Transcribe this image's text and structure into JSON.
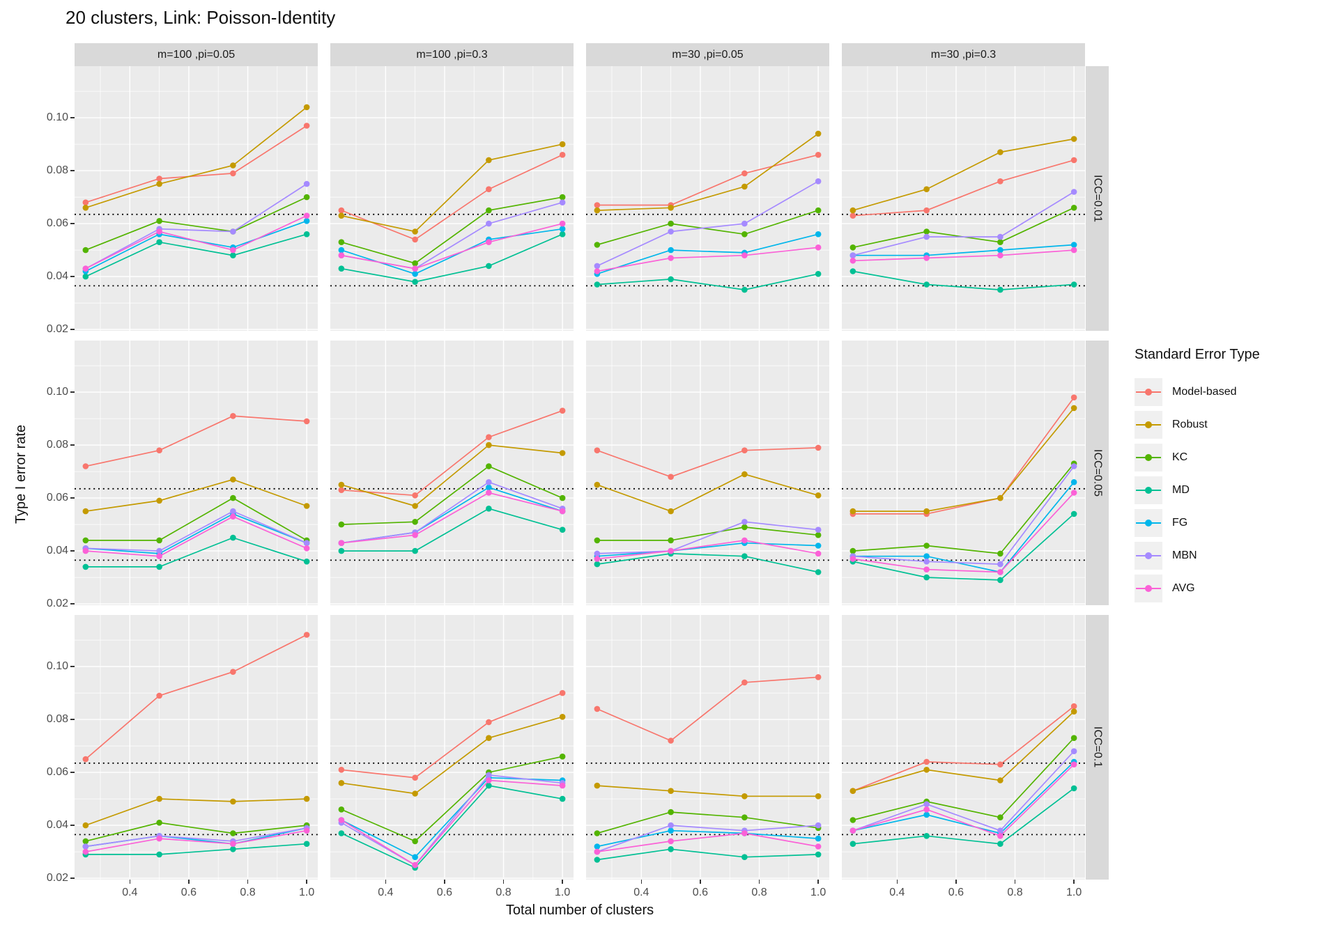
{
  "title": "20 clusters, Link: Poisson-Identity",
  "axes": {
    "x_title": "Total number of clusters",
    "y_title": "Type I error rate",
    "x_ticks": [
      0.4,
      0.6,
      0.8,
      1.0
    ],
    "y_ticks": [
      0.02,
      0.04,
      0.06,
      0.08,
      0.1
    ]
  },
  "facets": {
    "columns": [
      "m=100 ,pi=0.05",
      "m=100 ,pi=0.3",
      "m=30 ,pi=0.05",
      "m=30 ,pi=0.3"
    ],
    "rows": [
      "ICC=0.01",
      "ICC=0.05",
      "ICC=0.1"
    ]
  },
  "legend": {
    "title": "Standard Error Type",
    "entries": [
      {
        "label": "Model-based",
        "color": "#F8766D"
      },
      {
        "label": "Robust",
        "color": "#C49A00"
      },
      {
        "label": "KC",
        "color": "#53B400"
      },
      {
        "label": "MD",
        "color": "#00C094"
      },
      {
        "label": "FG",
        "color": "#00B6EB"
      },
      {
        "label": "MBN",
        "color": "#A58AFF"
      },
      {
        "label": "AVG",
        "color": "#FB61D7"
      }
    ]
  },
  "chart_data": {
    "type": "line",
    "x": [
      0.25,
      0.5,
      0.75,
      1.0
    ],
    "x_domain": [
      0.2125,
      1.0375
    ],
    "y_domain": [
      0.0195,
      0.1195
    ],
    "reference_lines": [
      0.0365,
      0.0635
    ],
    "grid": "on",
    "panel_background": "#EBEBEB",
    "panels": [
      {
        "row": 0,
        "col": 0,
        "facet_col": "m=100 ,pi=0.05",
        "facet_row": "ICC=0.01",
        "series": [
          {
            "name": "Model-based",
            "values": [
              0.068,
              0.077,
              0.079,
              0.097
            ]
          },
          {
            "name": "Robust",
            "values": [
              0.066,
              0.075,
              0.082,
              0.104
            ]
          },
          {
            "name": "KC",
            "values": [
              0.05,
              0.061,
              0.057,
              0.07
            ]
          },
          {
            "name": "MD",
            "values": [
              0.04,
              0.053,
              0.048,
              0.056
            ]
          },
          {
            "name": "FG",
            "values": [
              0.042,
              0.056,
              0.051,
              0.061
            ]
          },
          {
            "name": "MBN",
            "values": [
              0.043,
              0.058,
              0.057,
              0.075
            ]
          },
          {
            "name": "AVG",
            "values": [
              0.043,
              0.057,
              0.05,
              0.063
            ]
          }
        ]
      },
      {
        "row": 0,
        "col": 1,
        "facet_col": "m=100 ,pi=0.3",
        "facet_row": "ICC=0.01",
        "series": [
          {
            "name": "Model-based",
            "values": [
              0.065,
              0.054,
              0.073,
              0.086
            ]
          },
          {
            "name": "Robust",
            "values": [
              0.063,
              0.057,
              0.084,
              0.09
            ]
          },
          {
            "name": "KC",
            "values": [
              0.053,
              0.045,
              0.065,
              0.07
            ]
          },
          {
            "name": "MD",
            "values": [
              0.043,
              0.038,
              0.044,
              0.056
            ]
          },
          {
            "name": "FG",
            "values": [
              0.05,
              0.041,
              0.054,
              0.058
            ]
          },
          {
            "name": "MBN",
            "values": [
              0.048,
              0.043,
              0.06,
              0.068
            ]
          },
          {
            "name": "AVG",
            "values": [
              0.048,
              0.043,
              0.053,
              0.06
            ]
          }
        ]
      },
      {
        "row": 0,
        "col": 2,
        "facet_col": "m=30 ,pi=0.05",
        "facet_row": "ICC=0.01",
        "series": [
          {
            "name": "Model-based",
            "values": [
              0.067,
              0.067,
              0.079,
              0.086
            ]
          },
          {
            "name": "Robust",
            "values": [
              0.065,
              0.066,
              0.074,
              0.094
            ]
          },
          {
            "name": "KC",
            "values": [
              0.052,
              0.06,
              0.056,
              0.065
            ]
          },
          {
            "name": "MD",
            "values": [
              0.037,
              0.039,
              0.035,
              0.041
            ]
          },
          {
            "name": "FG",
            "values": [
              0.041,
              0.05,
              0.049,
              0.056
            ]
          },
          {
            "name": "MBN",
            "values": [
              0.044,
              0.057,
              0.06,
              0.076
            ]
          },
          {
            "name": "AVG",
            "values": [
              0.042,
              0.047,
              0.048,
              0.051
            ]
          }
        ]
      },
      {
        "row": 0,
        "col": 3,
        "facet_col": "m=30 ,pi=0.3",
        "facet_row": "ICC=0.01",
        "series": [
          {
            "name": "Model-based",
            "values": [
              0.063,
              0.065,
              0.076,
              0.084
            ]
          },
          {
            "name": "Robust",
            "values": [
              0.065,
              0.073,
              0.087,
              0.092
            ]
          },
          {
            "name": "KC",
            "values": [
              0.051,
              0.057,
              0.053,
              0.066
            ]
          },
          {
            "name": "MD",
            "values": [
              0.042,
              0.037,
              0.035,
              0.037
            ]
          },
          {
            "name": "FG",
            "values": [
              0.048,
              0.048,
              0.05,
              0.052
            ]
          },
          {
            "name": "MBN",
            "values": [
              0.048,
              0.055,
              0.055,
              0.072
            ]
          },
          {
            "name": "AVG",
            "values": [
              0.046,
              0.047,
              0.048,
              0.05
            ]
          }
        ]
      },
      {
        "row": 1,
        "col": 0,
        "facet_col": "m=100 ,pi=0.05",
        "facet_row": "ICC=0.05",
        "series": [
          {
            "name": "Model-based",
            "values": [
              0.072,
              0.078,
              0.091,
              0.089
            ]
          },
          {
            "name": "Robust",
            "values": [
              0.055,
              0.059,
              0.067,
              0.057
            ]
          },
          {
            "name": "KC",
            "values": [
              0.044,
              0.044,
              0.06,
              0.044
            ]
          },
          {
            "name": "MD",
            "values": [
              0.034,
              0.034,
              0.045,
              0.036
            ]
          },
          {
            "name": "FG",
            "values": [
              0.041,
              0.039,
              0.054,
              0.043
            ]
          },
          {
            "name": "MBN",
            "values": [
              0.041,
              0.04,
              0.055,
              0.043
            ]
          },
          {
            "name": "AVG",
            "values": [
              0.04,
              0.038,
              0.053,
              0.041
            ]
          }
        ]
      },
      {
        "row": 1,
        "col": 1,
        "facet_col": "m=100 ,pi=0.3",
        "facet_row": "ICC=0.05",
        "series": [
          {
            "name": "Model-based",
            "values": [
              0.063,
              0.061,
              0.083,
              0.093
            ]
          },
          {
            "name": "Robust",
            "values": [
              0.065,
              0.057,
              0.08,
              0.077
            ]
          },
          {
            "name": "KC",
            "values": [
              0.05,
              0.051,
              0.072,
              0.06
            ]
          },
          {
            "name": "MD",
            "values": [
              0.04,
              0.04,
              0.056,
              0.048
            ]
          },
          {
            "name": "FG",
            "values": [
              0.043,
              0.047,
              0.064,
              0.055
            ]
          },
          {
            "name": "MBN",
            "values": [
              0.043,
              0.047,
              0.066,
              0.056
            ]
          },
          {
            "name": "AVG",
            "values": [
              0.043,
              0.046,
              0.062,
              0.055
            ]
          }
        ]
      },
      {
        "row": 1,
        "col": 2,
        "facet_col": "m=30 ,pi=0.05",
        "facet_row": "ICC=0.05",
        "series": [
          {
            "name": "Model-based",
            "values": [
              0.078,
              0.068,
              0.078,
              0.079
            ]
          },
          {
            "name": "Robust",
            "values": [
              0.065,
              0.055,
              0.069,
              0.061
            ]
          },
          {
            "name": "KC",
            "values": [
              0.044,
              0.044,
              0.049,
              0.046
            ]
          },
          {
            "name": "MD",
            "values": [
              0.035,
              0.039,
              0.038,
              0.032
            ]
          },
          {
            "name": "FG",
            "values": [
              0.038,
              0.04,
              0.043,
              0.042
            ]
          },
          {
            "name": "MBN",
            "values": [
              0.039,
              0.04,
              0.051,
              0.048
            ]
          },
          {
            "name": "AVG",
            "values": [
              0.037,
              0.04,
              0.044,
              0.039
            ]
          }
        ]
      },
      {
        "row": 1,
        "col": 3,
        "facet_col": "m=30 ,pi=0.3",
        "facet_row": "ICC=0.05",
        "series": [
          {
            "name": "Model-based",
            "values": [
              0.054,
              0.054,
              0.06,
              0.098
            ]
          },
          {
            "name": "Robust",
            "values": [
              0.055,
              0.055,
              0.06,
              0.094
            ]
          },
          {
            "name": "KC",
            "values": [
              0.04,
              0.042,
              0.039,
              0.073
            ]
          },
          {
            "name": "MD",
            "values": [
              0.036,
              0.03,
              0.029,
              0.054
            ]
          },
          {
            "name": "FG",
            "values": [
              0.038,
              0.038,
              0.032,
              0.066
            ]
          },
          {
            "name": "MBN",
            "values": [
              0.038,
              0.036,
              0.035,
              0.072
            ]
          },
          {
            "name": "AVG",
            "values": [
              0.037,
              0.033,
              0.032,
              0.062
            ]
          }
        ]
      },
      {
        "row": 2,
        "col": 0,
        "facet_col": "m=100 ,pi=0.05",
        "facet_row": "ICC=0.1",
        "series": [
          {
            "name": "Model-based",
            "values": [
              0.065,
              0.089,
              0.098,
              0.112
            ]
          },
          {
            "name": "Robust",
            "values": [
              0.04,
              0.05,
              0.049,
              0.05
            ]
          },
          {
            "name": "KC",
            "values": [
              0.034,
              0.041,
              0.037,
              0.04
            ]
          },
          {
            "name": "MD",
            "values": [
              0.029,
              0.029,
              0.031,
              0.033
            ]
          },
          {
            "name": "FG",
            "values": [
              0.032,
              0.036,
              0.033,
              0.039
            ]
          },
          {
            "name": "MBN",
            "values": [
              0.032,
              0.036,
              0.034,
              0.039
            ]
          },
          {
            "name": "AVG",
            "values": [
              0.03,
              0.035,
              0.033,
              0.038
            ]
          }
        ]
      },
      {
        "row": 2,
        "col": 1,
        "facet_col": "m=100 ,pi=0.3",
        "facet_row": "ICC=0.1",
        "series": [
          {
            "name": "Model-based",
            "values": [
              0.061,
              0.058,
              0.079,
              0.09
            ]
          },
          {
            "name": "Robust",
            "values": [
              0.056,
              0.052,
              0.073,
              0.081
            ]
          },
          {
            "name": "KC",
            "values": [
              0.046,
              0.034,
              0.06,
              0.066
            ]
          },
          {
            "name": "MD",
            "values": [
              0.037,
              0.024,
              0.055,
              0.05
            ]
          },
          {
            "name": "FG",
            "values": [
              0.042,
              0.028,
              0.058,
              0.057
            ]
          },
          {
            "name": "MBN",
            "values": [
              0.041,
              0.025,
              0.059,
              0.056
            ]
          },
          {
            "name": "AVG",
            "values": [
              0.042,
              0.025,
              0.057,
              0.055
            ]
          }
        ]
      },
      {
        "row": 2,
        "col": 2,
        "facet_col": "m=30 ,pi=0.05",
        "facet_row": "ICC=0.1",
        "series": [
          {
            "name": "Model-based",
            "values": [
              0.084,
              0.072,
              0.094,
              0.096
            ]
          },
          {
            "name": "Robust",
            "values": [
              0.055,
              0.053,
              0.051,
              0.051
            ]
          },
          {
            "name": "KC",
            "values": [
              0.037,
              0.045,
              0.043,
              0.039
            ]
          },
          {
            "name": "MD",
            "values": [
              0.027,
              0.031,
              0.028,
              0.029
            ]
          },
          {
            "name": "FG",
            "values": [
              0.032,
              0.038,
              0.037,
              0.035
            ]
          },
          {
            "name": "MBN",
            "values": [
              0.03,
              0.04,
              0.038,
              0.04
            ]
          },
          {
            "name": "AVG",
            "values": [
              0.03,
              0.034,
              0.037,
              0.032
            ]
          }
        ]
      },
      {
        "row": 2,
        "col": 3,
        "facet_col": "m=30 ,pi=0.3",
        "facet_row": "ICC=0.1",
        "series": [
          {
            "name": "Model-based",
            "values": [
              0.053,
              0.064,
              0.063,
              0.085
            ]
          },
          {
            "name": "Robust",
            "values": [
              0.053,
              0.061,
              0.057,
              0.083
            ]
          },
          {
            "name": "KC",
            "values": [
              0.042,
              0.049,
              0.043,
              0.073
            ]
          },
          {
            "name": "MD",
            "values": [
              0.033,
              0.036,
              0.033,
              0.054
            ]
          },
          {
            "name": "FG",
            "values": [
              0.038,
              0.044,
              0.037,
              0.064
            ]
          },
          {
            "name": "MBN",
            "values": [
              0.038,
              0.048,
              0.038,
              0.068
            ]
          },
          {
            "name": "AVG",
            "values": [
              0.038,
              0.046,
              0.036,
              0.063
            ]
          }
        ]
      }
    ]
  }
}
